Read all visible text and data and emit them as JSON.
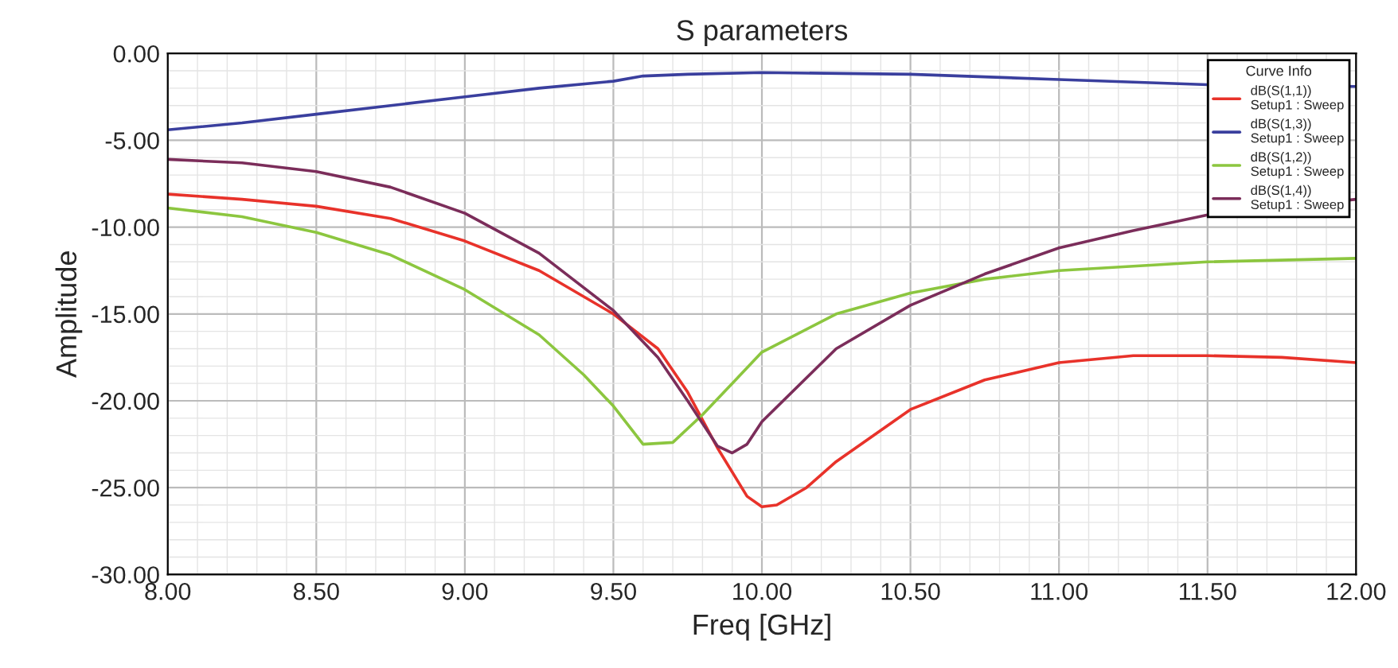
{
  "chart_data": {
    "type": "line",
    "title": "S parameters",
    "xlabel": "Freq [GHz]",
    "ylabel": "Amplitude",
    "legend_title": "Curve Info",
    "xlim": [
      8,
      12
    ],
    "ylim": [
      -30,
      0
    ],
    "xticks": [
      {
        "value": 8,
        "label": "8.00"
      },
      {
        "value": 8.5,
        "label": "8.50"
      },
      {
        "value": 9,
        "label": "9.00"
      },
      {
        "value": 9.5,
        "label": "9.50"
      },
      {
        "value": 10,
        "label": "10.00"
      },
      {
        "value": 10.5,
        "label": "10.50"
      },
      {
        "value": 11,
        "label": "11.00"
      },
      {
        "value": 11.5,
        "label": "11.50"
      },
      {
        "value": 12,
        "label": "12.00"
      }
    ],
    "yticks": [
      {
        "value": -30,
        "label": "-30.00"
      },
      {
        "value": -25,
        "label": "-25.00"
      },
      {
        "value": -20,
        "label": "-20.00"
      },
      {
        "value": -15,
        "label": "-15.00"
      },
      {
        "value": -10,
        "label": "-10.00"
      },
      {
        "value": -5,
        "label": "-5.00"
      },
      {
        "value": 0,
        "label": "0.00"
      }
    ],
    "grid": true,
    "legend": "top right",
    "marker": "none",
    "line_style": "solid",
    "series": [
      {
        "name": "dB(S(1,1))\nSetup1 : Sweep",
        "color": "#e8322a",
        "x": [
          8.0,
          8.25,
          8.5,
          8.75,
          9.0,
          9.25,
          9.5,
          9.65,
          9.75,
          9.85,
          9.95,
          10.0,
          10.05,
          10.15,
          10.25,
          10.5,
          10.75,
          11.0,
          11.25,
          11.5,
          11.75,
          12.0
        ],
        "values": [
          -8.1,
          -8.4,
          -8.8,
          -9.5,
          -10.8,
          -12.5,
          -15.0,
          -17.0,
          -19.5,
          -22.7,
          -25.5,
          -26.1,
          -26.0,
          -25.0,
          -23.5,
          -20.5,
          -18.8,
          -17.8,
          -17.4,
          -17.4,
          -17.5,
          -17.8
        ]
      },
      {
        "name": "dB(S(1,3))\nSetup1 : Sweep",
        "color": "#3a3f9e",
        "x": [
          8.0,
          8.25,
          8.5,
          8.75,
          9.0,
          9.25,
          9.5,
          9.6,
          9.75,
          10.0,
          10.5,
          11.0,
          11.5,
          12.0
        ],
        "values": [
          -4.4,
          -4.0,
          -3.5,
          -3.0,
          -2.5,
          -2.0,
          -1.6,
          -1.3,
          -1.2,
          -1.1,
          -1.2,
          -1.5,
          -1.8,
          -1.9
        ]
      },
      {
        "name": "dB(S(1,2))\nSetup1 : Sweep",
        "color": "#8cc63f",
        "x": [
          8.0,
          8.25,
          8.5,
          8.75,
          9.0,
          9.25,
          9.4,
          9.5,
          9.6,
          9.7,
          9.8,
          9.9,
          10.0,
          10.25,
          10.5,
          10.75,
          11.0,
          11.5,
          12.0
        ],
        "values": [
          -8.9,
          -9.4,
          -10.3,
          -11.6,
          -13.6,
          -16.2,
          -18.5,
          -20.3,
          -22.5,
          -22.4,
          -20.8,
          -19.0,
          -17.2,
          -15.0,
          -13.8,
          -13.0,
          -12.5,
          -12.0,
          -11.8
        ]
      },
      {
        "name": "dB(S(1,4))\nSetup1 : Sweep",
        "color": "#7b2d5a",
        "x": [
          8.0,
          8.25,
          8.5,
          8.75,
          9.0,
          9.25,
          9.5,
          9.65,
          9.75,
          9.85,
          9.9,
          9.95,
          10.0,
          10.25,
          10.5,
          10.75,
          11.0,
          11.25,
          11.5,
          12.0
        ],
        "values": [
          -6.1,
          -6.3,
          -6.8,
          -7.7,
          -9.2,
          -11.5,
          -14.8,
          -17.5,
          -20.0,
          -22.6,
          -23.0,
          -22.5,
          -21.2,
          -17.0,
          -14.5,
          -12.7,
          -11.2,
          -10.2,
          -9.3,
          -8.4
        ]
      }
    ]
  }
}
